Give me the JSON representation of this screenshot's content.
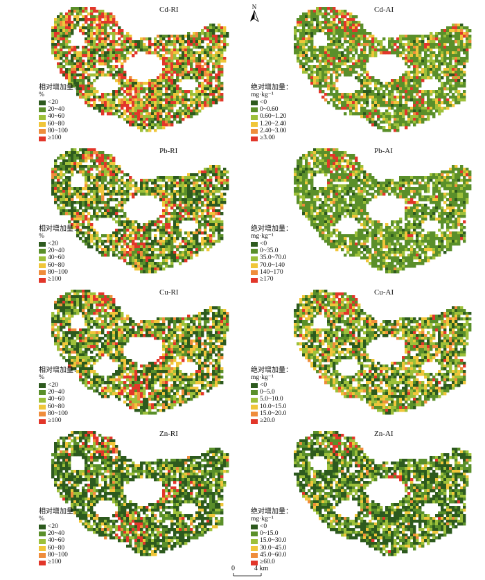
{
  "colors": {
    "dkgreen": "#2d5a1e",
    "green": "#5a8f2a",
    "ltgreen": "#9dc03a",
    "yellow": "#f0c63a",
    "orange": "#ef8d3c",
    "red": "#e2362a"
  },
  "north": {
    "label": "N"
  },
  "scale": {
    "zero": "0",
    "label": "4 km"
  },
  "legend_ri": {
    "title": "相对增加量：",
    "unit": "%",
    "classes": [
      "<20",
      "20~40",
      "40~60",
      "60~80",
      "80~100",
      "≥100"
    ]
  },
  "panels": [
    {
      "title": "Cd-RI",
      "legend_title": "相对增加量：",
      "unit": "%",
      "classes": [
        "<20",
        "20~40",
        "40~60",
        "60~80",
        "80~100",
        "≥100"
      ],
      "mix": [
        0.18,
        0.2,
        0.2,
        0.14,
        0.08,
        0.2
      ]
    },
    {
      "title": "Cd-AI",
      "legend_title": "绝对增加量：",
      "unit": "mg·kg⁻¹",
      "classes": [
        "<0",
        "0~0.60",
        "0.60~1.20",
        "1.20~2.40",
        "2.40~3.00",
        "≥3.00"
      ],
      "mix": [
        0.05,
        0.55,
        0.2,
        0.1,
        0.04,
        0.06
      ]
    },
    {
      "title": "Pb-RI",
      "legend_title": "相对增加量：",
      "unit": "%",
      "classes": [
        "<20",
        "20~40",
        "40~60",
        "60~80",
        "80~100",
        "≥100"
      ],
      "mix": [
        0.32,
        0.25,
        0.18,
        0.12,
        0.06,
        0.07
      ]
    },
    {
      "title": "Pb-AI",
      "legend_title": "绝对增加量：",
      "unit": "mg·kg⁻¹",
      "classes": [
        "<0",
        "0~35.0",
        "35.0~70.0",
        "70.0~140",
        "140~170",
        "≥170"
      ],
      "mix": [
        0.06,
        0.64,
        0.2,
        0.07,
        0.02,
        0.01
      ]
    },
    {
      "title": "Cu-RI",
      "legend_title": "相对增加量：",
      "unit": "%",
      "classes": [
        "<20",
        "20~40",
        "40~60",
        "60~80",
        "80~100",
        "≥100"
      ],
      "mix": [
        0.35,
        0.18,
        0.2,
        0.15,
        0.07,
        0.05
      ]
    },
    {
      "title": "Cu-AI",
      "legend_title": "绝对增加量：",
      "unit": "mg·kg⁻¹",
      "classes": [
        "<0",
        "0~5.0",
        "5.0~10.0",
        "10.0~15.0",
        "15.0~20.0",
        "≥20.0"
      ],
      "mix": [
        0.22,
        0.25,
        0.24,
        0.18,
        0.07,
        0.04
      ]
    },
    {
      "title": "Zn-RI",
      "legend_title": "相对增加量：",
      "unit": "%",
      "classes": [
        "<20",
        "20~40",
        "40~60",
        "60~80",
        "80~100",
        "≥100"
      ],
      "mix": [
        0.48,
        0.22,
        0.17,
        0.08,
        0.03,
        0.02
      ]
    },
    {
      "title": "Zn-AI",
      "legend_title": "绝对增加量：",
      "unit": "mg·kg⁻¹",
      "classes": [
        "<0",
        "0~15.0",
        "15.0~30.0",
        "30.0~45.0",
        "45.0~60.0",
        "≥60.0"
      ],
      "mix": [
        0.45,
        0.25,
        0.18,
        0.08,
        0.03,
        0.01
      ]
    }
  ]
}
